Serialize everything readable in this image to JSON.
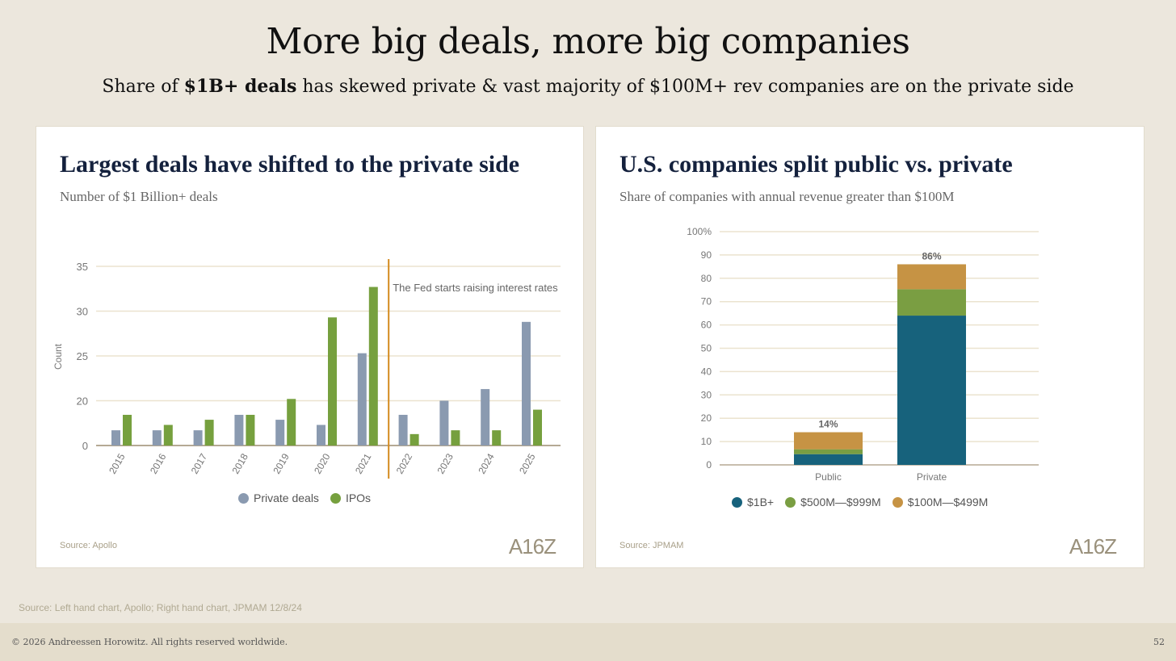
{
  "title": "More big deals, more big companies",
  "subtitle": {
    "pre": "Share of ",
    "bold": "$1B+ deals",
    "post": " has skewed private & vast majority of $100M+ rev companies are on the private side"
  },
  "left_card": {
    "title": "Largest deals have shifted to the private side",
    "subtitle": "Number of $1 Billion+ deals",
    "source": "Source: Apollo",
    "logo": "A16Z"
  },
  "right_card": {
    "title": "U.S. companies split public vs. private",
    "subtitle": "Share of companies with annual revenue greater than $100M",
    "source": "Source: JPMAM",
    "logo": "A16Z"
  },
  "footer": {
    "source": "Source: Left hand chart, Apollo; Right hand chart, JPMAM 12/8/24",
    "copyright": "© 2026 Andreessen Horowitz. All rights reserved worldwide.",
    "page": "52"
  },
  "colors": {
    "private": "#8a9ab0",
    "ipo": "#76a03e",
    "b1": "#17627c",
    "m500": "#7a9e42",
    "m100": "#c69344",
    "grid": "#ebe3cf",
    "fed": "#d48a1e"
  },
  "chart_data": [
    {
      "type": "bar",
      "title": "Largest deals have shifted to the private side",
      "ylabel": "Count",
      "xlabel": "",
      "yticks": [
        0,
        20,
        25,
        30,
        35
      ],
      "ylim": [
        0,
        35
      ],
      "grid": true,
      "legend": "bottom",
      "categories": [
        "2015",
        "2016",
        "2017",
        "2018",
        "2019",
        "2020",
        "2021",
        "2022",
        "2023",
        "2024",
        "2025"
      ],
      "series": [
        {
          "name": "Private deals",
          "values": [
            6.8,
            6.8,
            6.8,
            13.7,
            11.5,
            9.2,
            25.3,
            13.7,
            20,
            21.3,
            28.8
          ]
        },
        {
          "name": "IPOs",
          "values": [
            13.7,
            9.2,
            11.5,
            13.7,
            20.2,
            29.3,
            32.7,
            5.1,
            6.8,
            6.8,
            16
          ]
        }
      ],
      "annotation": {
        "text": "The Fed starts raising interest rates",
        "between": [
          "2021",
          "2022"
        ]
      }
    },
    {
      "type": "bar",
      "stacked": true,
      "title": "U.S. companies split public vs. private",
      "yticks": [
        "0",
        "10",
        "20",
        "30",
        "40",
        "50",
        "60",
        "70",
        "80",
        "90",
        "100%"
      ],
      "ylim": [
        0,
        100
      ],
      "grid": true,
      "legend": "bottom",
      "categories": [
        "Public",
        "Private"
      ],
      "series": [
        {
          "name": "$1B+",
          "values": [
            4.6,
            64
          ]
        },
        {
          "name": "$500M—$999M",
          "values": [
            2.1,
            11.3
          ]
        },
        {
          "name": "$100M—$499M",
          "values": [
            7.3,
            10.7
          ]
        }
      ],
      "totals": [
        "14%",
        "86%"
      ]
    }
  ]
}
